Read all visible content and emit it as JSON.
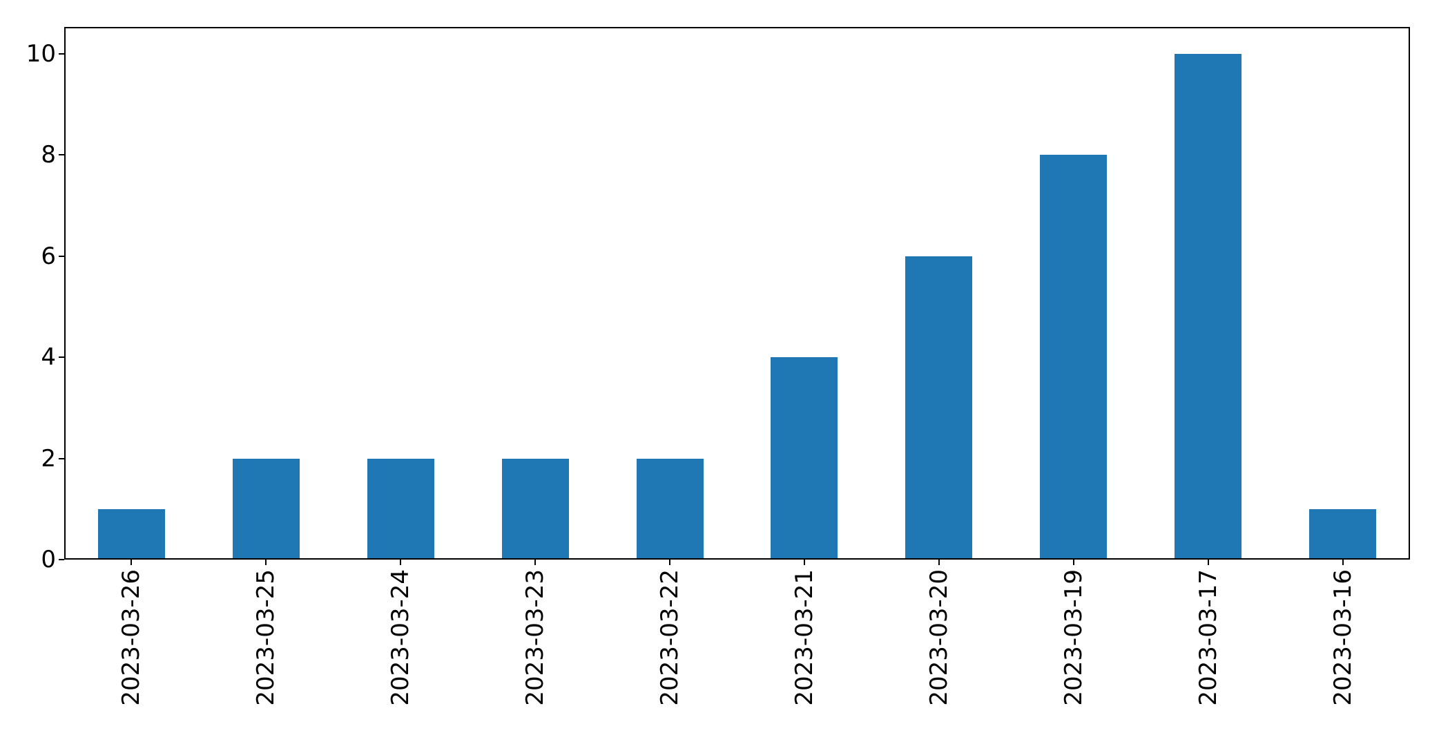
{
  "chart_data": {
    "type": "bar",
    "categories": [
      "2023-03-26",
      "2023-03-25",
      "2023-03-24",
      "2023-03-23",
      "2023-03-22",
      "2023-03-21",
      "2023-03-20",
      "2023-03-19",
      "2023-03-17",
      "2023-03-16"
    ],
    "values": [
      1,
      2,
      2,
      2,
      2,
      4,
      6,
      8,
      10,
      1
    ],
    "title": "",
    "xlabel": "",
    "ylabel": "",
    "ylim": [
      0,
      10.53
    ],
    "yticks": [
      0,
      2,
      4,
      6,
      8,
      10
    ],
    "xtick_rotation": 90,
    "grid": false,
    "legend": null,
    "bar_color": "#1f77b4",
    "axis_color": "#000000",
    "background_color": "#ffffff"
  }
}
